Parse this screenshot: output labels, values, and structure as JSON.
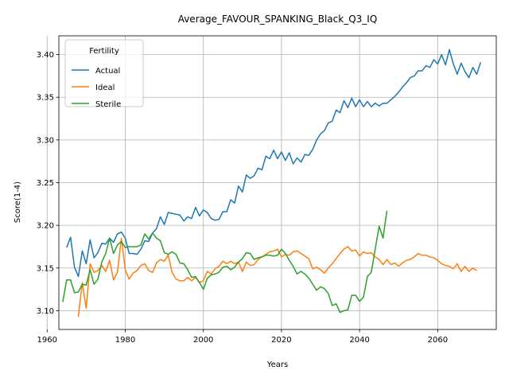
{
  "chart_data": {
    "type": "line",
    "title": "Average_FAVOUR_SPANKING_Black_Q3_IQ",
    "xlabel": "Years",
    "ylabel": "Score(1-4)",
    "xlim": [
      1963,
      2075
    ],
    "ylim": [
      3.078,
      3.422
    ],
    "x_ticks": [
      1960,
      1980,
      2000,
      2020,
      2040,
      2060
    ],
    "y_ticks": [
      3.1,
      3.15,
      3.2,
      3.25,
      3.3,
      3.35,
      3.4
    ],
    "x_tick_labels": [
      "1960",
      "1980",
      "2000",
      "2020",
      "2040",
      "2060"
    ],
    "y_tick_labels": [
      "3.10",
      "3.15",
      "3.20",
      "3.25",
      "3.30",
      "3.35",
      "3.40"
    ],
    "grid": true,
    "legend": {
      "title": "Fertility",
      "placement": "top-left"
    },
    "series": [
      {
        "name": "Actual",
        "color": "#1f77b4",
        "x_start": 1965,
        "values": [
          3.174,
          3.186,
          3.151,
          3.14,
          3.17,
          3.155,
          3.183,
          3.162,
          3.168,
          3.179,
          3.178,
          3.185,
          3.18,
          3.19,
          3.192,
          3.185,
          3.167,
          3.167,
          3.166,
          3.172,
          3.182,
          3.181,
          3.191,
          3.196,
          3.21,
          3.201,
          3.215,
          3.214,
          3.213,
          3.212,
          3.205,
          3.21,
          3.208,
          3.221,
          3.211,
          3.218,
          3.215,
          3.208,
          3.206,
          3.207,
          3.216,
          3.216,
          3.23,
          3.226,
          3.246,
          3.239,
          3.259,
          3.255,
          3.258,
          3.267,
          3.265,
          3.281,
          3.278,
          3.288,
          3.278,
          3.286,
          3.276,
          3.285,
          3.272,
          3.279,
          3.274,
          3.283,
          3.282,
          3.289,
          3.3,
          3.307,
          3.311,
          3.32,
          3.322,
          3.335,
          3.332,
          3.346,
          3.338,
          3.349,
          3.339,
          3.347,
          3.339,
          3.345,
          3.339,
          3.343,
          3.34,
          3.343,
          3.343,
          3.347,
          3.351,
          3.356,
          3.362,
          3.367,
          3.373,
          3.375,
          3.381,
          3.381,
          3.387,
          3.385,
          3.394,
          3.389,
          3.4,
          3.388,
          3.406,
          3.389,
          3.377,
          3.39,
          3.38,
          3.373,
          3.385,
          3.377,
          3.391
        ]
      },
      {
        "name": "Ideal",
        "color": "#ff7f0e",
        "x_start": 1968,
        "values": [
          3.093,
          3.133,
          3.103,
          3.155,
          3.145,
          3.147,
          3.153,
          3.146,
          3.159,
          3.136,
          3.145,
          3.185,
          3.148,
          3.137,
          3.144,
          3.147,
          3.153,
          3.155,
          3.147,
          3.145,
          3.156,
          3.16,
          3.158,
          3.165,
          3.145,
          3.137,
          3.135,
          3.135,
          3.139,
          3.135,
          3.139,
          3.133,
          3.135,
          3.146,
          3.143,
          3.149,
          3.152,
          3.158,
          3.155,
          3.158,
          3.155,
          3.157,
          3.146,
          3.157,
          3.153,
          3.154,
          3.16,
          3.163,
          3.166,
          3.169,
          3.17,
          3.172,
          3.163,
          3.166,
          3.165,
          3.169,
          3.17,
          3.167,
          3.164,
          3.161,
          3.149,
          3.151,
          3.148,
          3.144,
          3.15,
          3.155,
          3.161,
          3.167,
          3.172,
          3.175,
          3.17,
          3.171,
          3.164,
          3.169,
          3.167,
          3.168,
          3.163,
          3.16,
          3.154,
          3.16,
          3.154,
          3.156,
          3.152,
          3.156,
          3.159,
          3.16,
          3.163,
          3.167,
          3.165,
          3.165,
          3.163,
          3.162,
          3.159,
          3.155,
          3.153,
          3.152,
          3.149,
          3.155,
          3.146,
          3.152,
          3.146,
          3.15,
          3.147
        ]
      },
      {
        "name": "Sterile",
        "color": "#2ca02c",
        "x_start": 1964,
        "values": [
          3.11,
          3.136,
          3.136,
          3.121,
          3.122,
          3.131,
          3.13,
          3.148,
          3.131,
          3.137,
          3.157,
          3.167,
          3.185,
          3.167,
          3.177,
          3.181,
          3.174,
          3.175,
          3.175,
          3.175,
          3.177,
          3.19,
          3.184,
          3.191,
          3.185,
          3.182,
          3.168,
          3.166,
          3.169,
          3.166,
          3.156,
          3.155,
          3.148,
          3.139,
          3.14,
          3.133,
          3.125,
          3.138,
          3.142,
          3.143,
          3.145,
          3.151,
          3.152,
          3.148,
          3.151,
          3.157,
          3.161,
          3.168,
          3.167,
          3.16,
          3.162,
          3.163,
          3.165,
          3.165,
          3.164,
          3.165,
          3.172,
          3.167,
          3.159,
          3.152,
          3.143,
          3.146,
          3.143,
          3.138,
          3.131,
          3.124,
          3.128,
          3.126,
          3.12,
          3.106,
          3.108,
          3.098,
          3.1,
          3.101,
          3.118,
          3.118,
          3.111,
          3.116,
          3.14,
          3.145,
          3.172,
          3.199,
          3.185,
          3.217
        ]
      }
    ]
  }
}
